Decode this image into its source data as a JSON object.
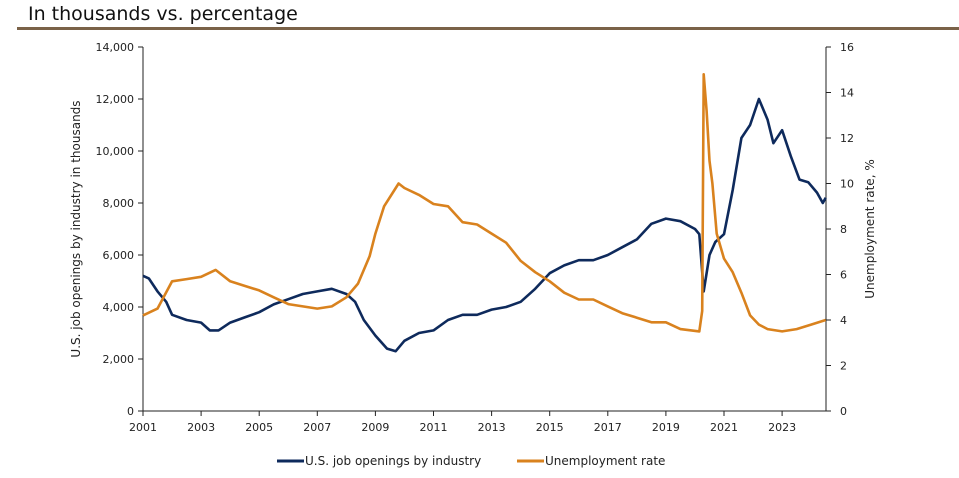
{
  "title": "In thousands vs. percentage",
  "chart_data": {
    "type": "line",
    "title": "In thousands vs. percentage",
    "xlabel": "",
    "ylabel": "U.S. job openings by industry in thousands",
    "y2label": "Unemployment rate, %",
    "xlim": [
      2001,
      2024.5
    ],
    "ylim": [
      0,
      14000
    ],
    "y2lim": [
      0,
      16
    ],
    "x_ticks": [
      "2001",
      "2003",
      "2005",
      "2007",
      "2009",
      "2011",
      "2013",
      "2015",
      "2017",
      "2019",
      "2021",
      "2023"
    ],
    "y_ticks": [
      "0",
      "2,000",
      "4,000",
      "6,000",
      "8,000",
      "10,000",
      "12,000",
      "14,000"
    ],
    "y2_ticks": [
      "0",
      "2",
      "4",
      "6",
      "8",
      "10",
      "12",
      "14",
      "16"
    ],
    "grid": false,
    "legend_position": "bottom",
    "series": [
      {
        "name": "U.S. job openings by industry",
        "axis": "left",
        "color": "#0e2a5c",
        "x": [
          2001,
          2001.2,
          2001.5,
          2001.8,
          2002,
          2002.5,
          2003,
          2003.3,
          2003.6,
          2004,
          2004.5,
          2005,
          2005.5,
          2006,
          2006.5,
          2007,
          2007.5,
          2008,
          2008.3,
          2008.6,
          2009,
          2009.4,
          2009.7,
          2010,
          2010.5,
          2011,
          2011.5,
          2012,
          2012.5,
          2013,
          2013.5,
          2014,
          2014.5,
          2015,
          2015.5,
          2016,
          2016.5,
          2017,
          2017.5,
          2018,
          2018.5,
          2019,
          2019.5,
          2020,
          2020.15,
          2020.3,
          2020.5,
          2020.7,
          2021,
          2021.3,
          2021.6,
          2021.9,
          2022.2,
          2022.5,
          2022.7,
          2023,
          2023.3,
          2023.6,
          2023.9,
          2024.2,
          2024.4,
          2024.5
        ],
        "values": [
          5200,
          5100,
          4600,
          4200,
          3700,
          3500,
          3400,
          3100,
          3100,
          3400,
          3600,
          3800,
          4100,
          4300,
          4500,
          4600,
          4700,
          4500,
          4200,
          3500,
          2900,
          2400,
          2300,
          2700,
          3000,
          3100,
          3500,
          3700,
          3700,
          3900,
          4000,
          4200,
          4700,
          5300,
          5600,
          5800,
          5800,
          6000,
          6300,
          6600,
          7200,
          7400,
          7300,
          7000,
          6800,
          4600,
          6000,
          6500,
          6800,
          8500,
          10500,
          11000,
          12000,
          11200,
          10300,
          10800,
          9800,
          8900,
          8800,
          8400,
          8000,
          8200
        ]
      },
      {
        "name": "Unemployment rate",
        "axis": "right",
        "color": "#d9821e",
        "x": [
          2001,
          2001.5,
          2002,
          2002.5,
          2003,
          2003.5,
          2004,
          2004.5,
          2005,
          2005.5,
          2006,
          2006.5,
          2007,
          2007.5,
          2008,
          2008.4,
          2008.8,
          2009,
          2009.3,
          2009.8,
          2010,
          2010.5,
          2011,
          2011.5,
          2012,
          2012.5,
          2013,
          2013.5,
          2014,
          2014.5,
          2015,
          2015.5,
          2016,
          2016.5,
          2017,
          2017.5,
          2018,
          2018.5,
          2019,
          2019.5,
          2020.15,
          2020.25,
          2020.3,
          2020.4,
          2020.5,
          2020.6,
          2020.75,
          2021,
          2021.3,
          2021.6,
          2021.9,
          2022.2,
          2022.5,
          2023,
          2023.5,
          2024,
          2024.5
        ],
        "values": [
          4.2,
          4.5,
          5.7,
          5.8,
          5.9,
          6.2,
          5.7,
          5.5,
          5.3,
          5.0,
          4.7,
          4.6,
          4.5,
          4.6,
          5.0,
          5.6,
          6.8,
          7.8,
          9.0,
          10.0,
          9.8,
          9.5,
          9.1,
          9.0,
          8.3,
          8.2,
          7.8,
          7.4,
          6.6,
          6.1,
          5.7,
          5.2,
          4.9,
          4.9,
          4.6,
          4.3,
          4.1,
          3.9,
          3.9,
          3.6,
          3.5,
          4.4,
          14.8,
          13.2,
          11.0,
          10.0,
          7.8,
          6.7,
          6.1,
          5.2,
          4.2,
          3.8,
          3.6,
          3.5,
          3.6,
          3.8,
          4.0
        ]
      }
    ]
  }
}
